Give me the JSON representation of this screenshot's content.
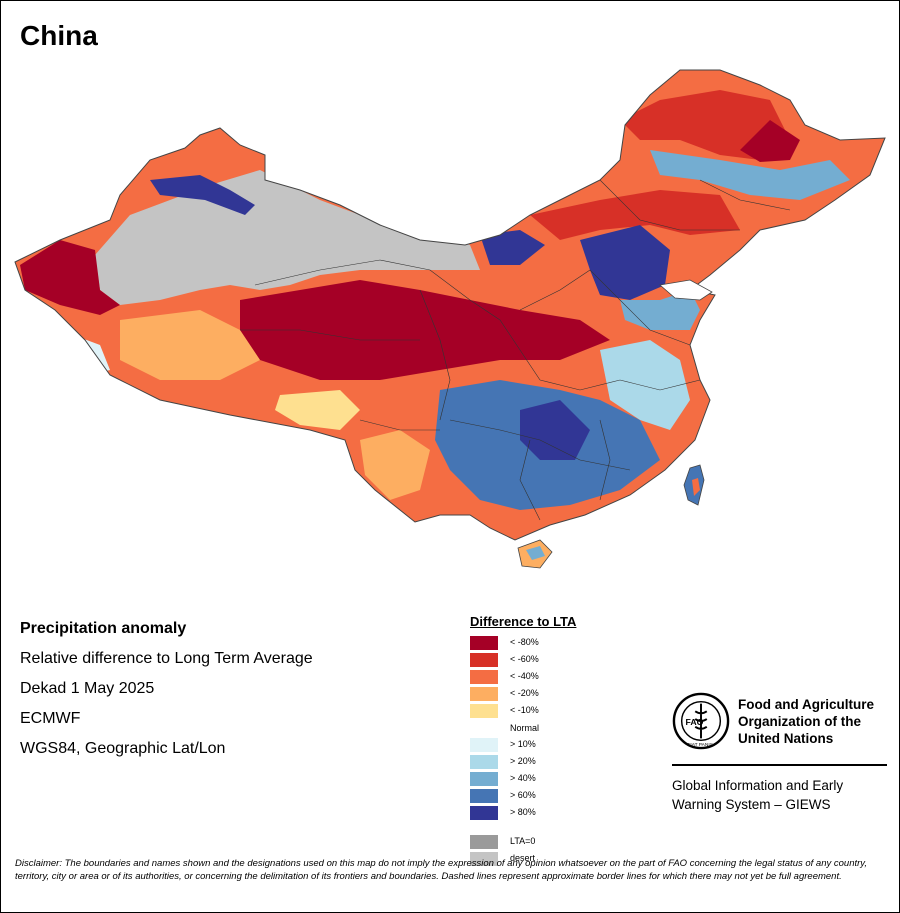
{
  "title": "China",
  "info": {
    "heading": "Precipitation anomaly",
    "lines": [
      "Relative difference to Long Term Average",
      "Dekad 1 May 2025",
      "ECMWF",
      "WGS84, Geographic Lat/Lon"
    ]
  },
  "legend": {
    "title": "Difference to LTA",
    "dry": [
      {
        "label": "< -80%",
        "color": "#a50026"
      },
      {
        "label": "< -60%",
        "color": "#d73027"
      },
      {
        "label": "< -40%",
        "color": "#f46d43"
      },
      {
        "label": "< -20%",
        "color": "#fdae61"
      },
      {
        "label": "< -10%",
        "color": "#fee090"
      }
    ],
    "normal_label": "Normal",
    "wet": [
      {
        "label": "> 10%",
        "color": "#e0f3f8"
      },
      {
        "label": "> 20%",
        "color": "#abd9e9"
      },
      {
        "label": "> 40%",
        "color": "#74add1"
      },
      {
        "label": "> 60%",
        "color": "#4575b4"
      },
      {
        "label": "> 80%",
        "color": "#313695"
      }
    ],
    "other": [
      {
        "label": "LTA=0",
        "color": "#9a9a9a"
      },
      {
        "label": "desert",
        "color": "#c4c4c4"
      }
    ]
  },
  "fao": {
    "logo_text": "FAO",
    "logo_motto": "FIAT PANIS",
    "name": "Food and Agriculture Organization of the United Nations",
    "system": "Global Information and Early Warning System – GIEWS"
  },
  "disclaimer": "Disclaimer: The boundaries and names shown and the designations used on this map do not imply the expression of any opinion whatsoever on the part of FAO concerning the legal status of any country, territory, city or area or of its authorities, or concerning the delimitation of its frontiers and boundaries. Dashed lines represent approximate border lines for which there may not yet be full agreement."
}
